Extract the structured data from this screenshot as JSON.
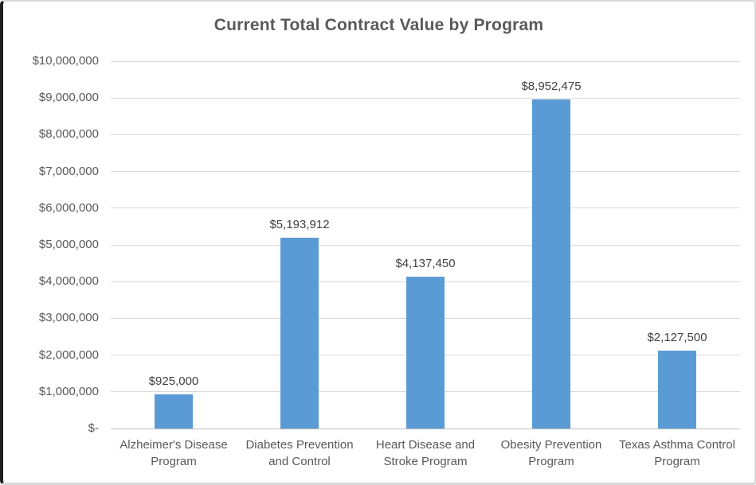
{
  "window": {
    "title": "Current Total Contract Value by Program"
  },
  "chart_data": {
    "type": "bar",
    "title": "Current Total Contract Value by Program",
    "xlabel": "",
    "ylabel": "",
    "legend": false,
    "grid": true,
    "categories": [
      "Alzheimer's Disease Program",
      "Diabetes Prevention and Control",
      "Heart Disease and Stroke Program",
      "Obesity Prevention Program",
      "Texas Asthma Control Program"
    ],
    "values": [
      925000,
      5193912,
      4137450,
      8952475,
      2127500
    ],
    "value_labels": [
      "$925,000",
      "$5,193,912",
      "$4,137,450",
      "$8,952,475",
      "$2,127,500"
    ],
    "ylim": [
      0,
      10000000
    ],
    "y_ticks": [
      {
        "value": 0,
        "label": "$-"
      },
      {
        "value": 1000000,
        "label": "$1,000,000"
      },
      {
        "value": 2000000,
        "label": "$2,000,000"
      },
      {
        "value": 3000000,
        "label": "$3,000,000"
      },
      {
        "value": 4000000,
        "label": "$4,000,000"
      },
      {
        "value": 5000000,
        "label": "$5,000,000"
      },
      {
        "value": 6000000,
        "label": "$6,000,000"
      },
      {
        "value": 7000000,
        "label": "$7,000,000"
      },
      {
        "value": 8000000,
        "label": "$8,000,000"
      },
      {
        "value": 9000000,
        "label": "$9,000,000"
      },
      {
        "value": 10000000,
        "label": "$10,000,000"
      }
    ],
    "colors": {
      "bar": "#5b9bd5",
      "gridline": "#d9d9d9",
      "axis_line": "#bfbfbf",
      "title_text": "#595959",
      "axis_text": "#595959",
      "data_label_text": "#404040"
    }
  }
}
